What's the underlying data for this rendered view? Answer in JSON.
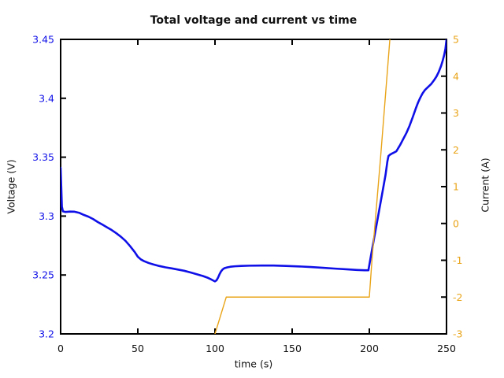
{
  "chart_data": {
    "type": "line",
    "title": "Total voltage and current vs time",
    "xlabel": "time (s)",
    "ylabel_left": "Voltage (V)",
    "ylabel_right": "Current (A)",
    "xlim": [
      0,
      250
    ],
    "ylim_left": [
      3.2,
      3.45
    ],
    "ylim_right": [
      -3,
      5
    ],
    "grid": false,
    "legend": "none",
    "colors": {
      "voltage_blue": "#0f0fe8",
      "current_orange": "#e9a418",
      "axis_black": "#000000",
      "background": "#ffffff"
    },
    "x_ticks": {
      "values": [
        0,
        50,
        100,
        150,
        200,
        250
      ],
      "labels": [
        "0",
        "50",
        "100",
        "150",
        "200",
        "250"
      ]
    },
    "y_left_ticks": {
      "values": [
        3.2,
        3.25,
        3.3,
        3.35,
        3.4,
        3.45
      ],
      "labels": [
        "3.2",
        "3.25",
        "3.3",
        "3.35",
        "3.4",
        "3.45"
      ]
    },
    "y_right_ticks": {
      "values": [
        -3,
        -2,
        -1,
        0,
        1,
        2,
        3,
        4,
        5
      ],
      "labels": [
        "-3",
        "-2",
        "-1",
        "0",
        "1",
        "2",
        "3",
        "4",
        "5"
      ]
    },
    "series": [
      {
        "name": "voltage",
        "axis": "left",
        "color": "#0f0fe8",
        "width": 2.6,
        "points": [
          [
            0,
            3.341
          ],
          [
            0.4,
            3.325
          ],
          [
            0.8,
            3.308
          ],
          [
            1.5,
            3.304
          ],
          [
            3,
            3.3035
          ],
          [
            6,
            3.3038
          ],
          [
            9,
            3.3037
          ],
          [
            12,
            3.3028
          ],
          [
            15,
            3.301
          ],
          [
            18,
            3.2995
          ],
          [
            21,
            3.2975
          ],
          [
            24,
            3.295
          ],
          [
            27,
            3.2928
          ],
          [
            30,
            3.2905
          ],
          [
            33,
            3.2882
          ],
          [
            36,
            3.2855
          ],
          [
            39,
            3.2825
          ],
          [
            42,
            3.279
          ],
          [
            45,
            3.2745
          ],
          [
            48,
            3.2695
          ],
          [
            50,
            3.2655
          ],
          [
            52,
            3.2632
          ],
          [
            54,
            3.2618
          ],
          [
            57,
            3.2602
          ],
          [
            60,
            3.259
          ],
          [
            64,
            3.2576
          ],
          [
            68,
            3.2565
          ],
          [
            72,
            3.2556
          ],
          [
            76,
            3.2546
          ],
          [
            80,
            3.2536
          ],
          [
            84,
            3.2522
          ],
          [
            88,
            3.2507
          ],
          [
            92,
            3.2492
          ],
          [
            95,
            3.2478
          ],
          [
            97,
            3.2466
          ],
          [
            99,
            3.2452
          ],
          [
            100,
            3.2446
          ],
          [
            101,
            3.2455
          ],
          [
            102,
            3.2478
          ],
          [
            103,
            3.2508
          ],
          [
            104,
            3.2532
          ],
          [
            105,
            3.2548
          ],
          [
            106,
            3.2557
          ],
          [
            108,
            3.2565
          ],
          [
            110,
            3.257
          ],
          [
            113,
            3.2574
          ],
          [
            117,
            3.2577
          ],
          [
            122,
            3.2579
          ],
          [
            130,
            3.258
          ],
          [
            138,
            3.258
          ],
          [
            146,
            3.2577
          ],
          [
            154,
            3.2573
          ],
          [
            162,
            3.2568
          ],
          [
            170,
            3.2561
          ],
          [
            178,
            3.2554
          ],
          [
            186,
            3.2548
          ],
          [
            192,
            3.2543
          ],
          [
            197,
            3.254
          ],
          [
            199.4,
            3.254
          ],
          [
            201,
            3.266
          ],
          [
            203,
            3.2805
          ],
          [
            205,
            3.295
          ],
          [
            207,
            3.3095
          ],
          [
            209,
            3.324
          ],
          [
            210.5,
            3.335
          ],
          [
            211.7,
            3.3465
          ],
          [
            212.4,
            3.351
          ],
          [
            213.5,
            3.3522
          ],
          [
            215,
            3.3533
          ],
          [
            216.5,
            3.3543
          ],
          [
            217.5,
            3.355
          ],
          [
            218.5,
            3.3572
          ],
          [
            220,
            3.3605
          ],
          [
            222,
            3.3655
          ],
          [
            224,
            3.3705
          ],
          [
            226,
            3.3765
          ],
          [
            228,
            3.3835
          ],
          [
            230,
            3.391
          ],
          [
            231.5,
            3.3962
          ],
          [
            233,
            3.4005
          ],
          [
            234.5,
            3.4042
          ],
          [
            236,
            3.407
          ],
          [
            238,
            3.4095
          ],
          [
            240,
            3.412
          ],
          [
            242,
            3.4155
          ],
          [
            243.5,
            3.4185
          ],
          [
            245,
            3.4225
          ],
          [
            246.5,
            3.4275
          ],
          [
            247.5,
            3.4318
          ],
          [
            248.5,
            3.4368
          ],
          [
            249.3,
            3.442
          ],
          [
            250,
            3.45
          ]
        ]
      },
      {
        "name": "current",
        "axis": "right",
        "color": "#e9a418",
        "width": 1.4,
        "points": [
          [
            100,
            -3
          ],
          [
            107.3,
            -2
          ],
          [
            200,
            -2
          ],
          [
            201.7,
            -1.0
          ],
          [
            207.3,
            1.8
          ],
          [
            213.3,
            5
          ]
        ]
      }
    ]
  }
}
